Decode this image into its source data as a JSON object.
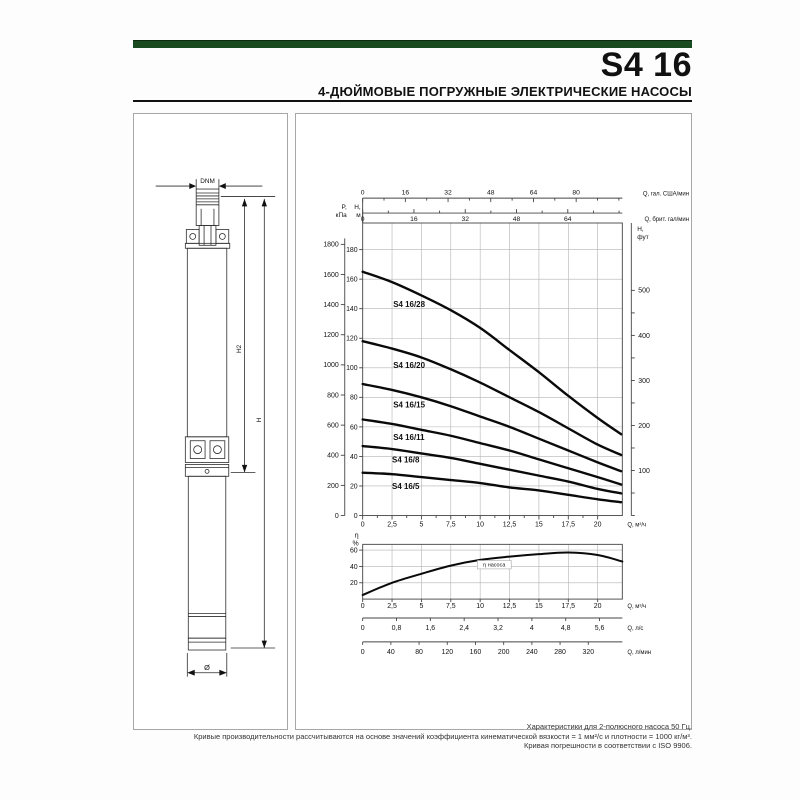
{
  "header": {
    "title": "S4 16",
    "subtitle": "4-ДЮЙМОВЫЕ ПОГРУЖНЫЕ ЭЛЕКТРИЧЕСКИЕ НАСОСЫ",
    "accent_color": "#1a4a20"
  },
  "drawing": {
    "dim_dnm": "DNM",
    "dim_h2": "H2",
    "dim_h": "H",
    "dim_diameter": "Ø"
  },
  "chart_data": [
    {
      "type": "line",
      "title": "",
      "xlabel": "Q, м³/ч",
      "xlim": [
        0,
        22.1
      ],
      "x_ticks": [
        [
          0,
          "0"
        ],
        [
          2.5,
          "2,5"
        ],
        [
          5,
          "5"
        ],
        [
          7.5,
          "7,5"
        ],
        [
          10,
          "10"
        ],
        [
          12.5,
          "12,5"
        ],
        [
          15,
          "15"
        ],
        [
          17.5,
          "17,5"
        ],
        [
          20,
          "20"
        ]
      ],
      "ylim_m": [
        0,
        198
      ],
      "grid": true,
      "yaxis_m": {
        "label_lines": [
          "H,",
          "м"
        ],
        "ticks": [
          0,
          20,
          40,
          60,
          80,
          100,
          120,
          140,
          160,
          180
        ]
      },
      "yaxis_kpa": {
        "label_lines": [
          "P,",
          "кПа"
        ],
        "ticks": [
          0,
          200,
          400,
          600,
          800,
          1000,
          1200,
          1400,
          1600,
          1800
        ],
        "kpa_per_m": 9.80665
      },
      "yaxis_ft": {
        "label_lines": [
          "H,",
          "фут"
        ],
        "ticks": [
          100,
          200,
          300,
          400,
          500
        ],
        "tick_step": 50,
        "max": 500,
        "m_per_ft": 0.3048
      },
      "top_axis_us": {
        "label": "Q, гал. США/мин",
        "ticks": [
          0,
          16,
          32,
          48,
          64,
          80
        ],
        "minor_step": 8,
        "m3h_per_unit": 0.22712
      },
      "top_axis_imp": {
        "label": "Q, брит. гал/мин",
        "ticks": [
          0,
          16,
          32,
          48,
          64
        ],
        "minor_step": 8,
        "m3h_per_unit": 0.27277
      },
      "series": [
        {
          "name": "S4 16/28",
          "label_at": [
            2.6,
            141
          ],
          "points": [
            [
              0,
              165
            ],
            [
              2.5,
              158
            ],
            [
              5,
              149
            ],
            [
              7.5,
              139
            ],
            [
              10,
              127
            ],
            [
              12.5,
              112
            ],
            [
              15,
              97
            ],
            [
              17.5,
              81
            ],
            [
              20,
              66
            ],
            [
              22,
              55
            ]
          ]
        },
        {
          "name": "S4 16/20",
          "label_at": [
            2.6,
            100
          ],
          "points": [
            [
              0,
              118
            ],
            [
              2.5,
              113
            ],
            [
              5,
              107
            ],
            [
              7.5,
              99
            ],
            [
              10,
              90
            ],
            [
              12.5,
              80
            ],
            [
              15,
              70
            ],
            [
              17.5,
              59
            ],
            [
              20,
              48
            ],
            [
              22,
              41
            ]
          ]
        },
        {
          "name": "S4 16/15",
          "label_at": [
            2.6,
            73
          ],
          "points": [
            [
              0,
              89
            ],
            [
              2.5,
              85
            ],
            [
              5,
              80
            ],
            [
              7.5,
              74
            ],
            [
              10,
              67
            ],
            [
              12.5,
              60
            ],
            [
              15,
              52
            ],
            [
              17.5,
              44
            ],
            [
              20,
              36
            ],
            [
              22,
              30
            ]
          ]
        },
        {
          "name": "S4 16/11",
          "label_at": [
            2.6,
            51
          ],
          "points": [
            [
              0,
              65
            ],
            [
              2.5,
              62
            ],
            [
              5,
              58
            ],
            [
              7.5,
              54
            ],
            [
              10,
              49
            ],
            [
              12.5,
              44
            ],
            [
              15,
              38
            ],
            [
              17.5,
              32
            ],
            [
              20,
              26
            ],
            [
              22,
              21
            ]
          ]
        },
        {
          "name": "S4 16/8",
          "label_at": [
            2.5,
            36
          ],
          "points": [
            [
              0,
              47
            ],
            [
              2.5,
              45
            ],
            [
              5,
              42
            ],
            [
              7.5,
              39
            ],
            [
              10,
              35
            ],
            [
              12.5,
              31
            ],
            [
              15,
              27
            ],
            [
              17.5,
              23
            ],
            [
              20,
              18
            ],
            [
              22,
              15
            ]
          ]
        },
        {
          "name": "S4 16/5",
          "label_at": [
            2.5,
            18
          ],
          "points": [
            [
              0,
              29
            ],
            [
              2.5,
              28
            ],
            [
              5,
              26
            ],
            [
              7.5,
              24
            ],
            [
              10,
              22
            ],
            [
              12.5,
              19
            ],
            [
              15,
              17
            ],
            [
              17.5,
              14
            ],
            [
              20,
              11
            ],
            [
              22,
              9
            ]
          ]
        }
      ]
    },
    {
      "type": "line",
      "title": "",
      "ylabel_lines": [
        "η",
        "%"
      ],
      "ylim": [
        0,
        67
      ],
      "y_ticks": [
        20,
        40,
        60
      ],
      "xlabel": "Q, м³/ч",
      "x_ticks": [
        [
          0,
          "0"
        ],
        [
          2.5,
          "2,5"
        ],
        [
          5,
          "5"
        ],
        [
          7.5,
          "7,5"
        ],
        [
          10,
          "10"
        ],
        [
          12.5,
          "12,5"
        ],
        [
          15,
          "15"
        ],
        [
          17.5,
          "17,5"
        ],
        [
          20,
          "20"
        ]
      ],
      "axis_ls": {
        "label": "Q, л/с",
        "ticks": [
          [
            0,
            "0"
          ],
          [
            0.8,
            "0,8"
          ],
          [
            1.6,
            "1,6"
          ],
          [
            2.4,
            "2,4"
          ],
          [
            3.2,
            "3,2"
          ],
          [
            4,
            "4"
          ],
          [
            4.8,
            "4,8"
          ],
          [
            5.6,
            "5,6"
          ]
        ],
        "m3h_per_unit": 3.6
      },
      "axis_lmin": {
        "label": "Q, л/мин",
        "ticks": [
          0,
          40,
          80,
          120,
          160,
          200,
          240,
          280,
          320
        ],
        "m3h_per_unit": 0.06
      },
      "series": [
        {
          "name": "η насоса",
          "label_at": [
            11.2,
            40
          ],
          "points": [
            [
              0,
              5
            ],
            [
              2.5,
              20
            ],
            [
              5,
              31
            ],
            [
              7.5,
              41
            ],
            [
              10,
              48
            ],
            [
              12.5,
              52
            ],
            [
              15,
              55
            ],
            [
              17.5,
              57
            ],
            [
              20,
              54
            ],
            [
              22.1,
              46
            ]
          ]
        }
      ]
    }
  ],
  "footer": {
    "lines": [
      "Характеристики для 2-полюсного насоса 50 Гц.",
      "Кривые производительности рассчитываются на основе значений коэффициента кинематической вязкости = 1 мм²/с и плотности = 1000 кг/м³.",
      "Кривая погрешности в соответствии с ISO 9906."
    ]
  }
}
